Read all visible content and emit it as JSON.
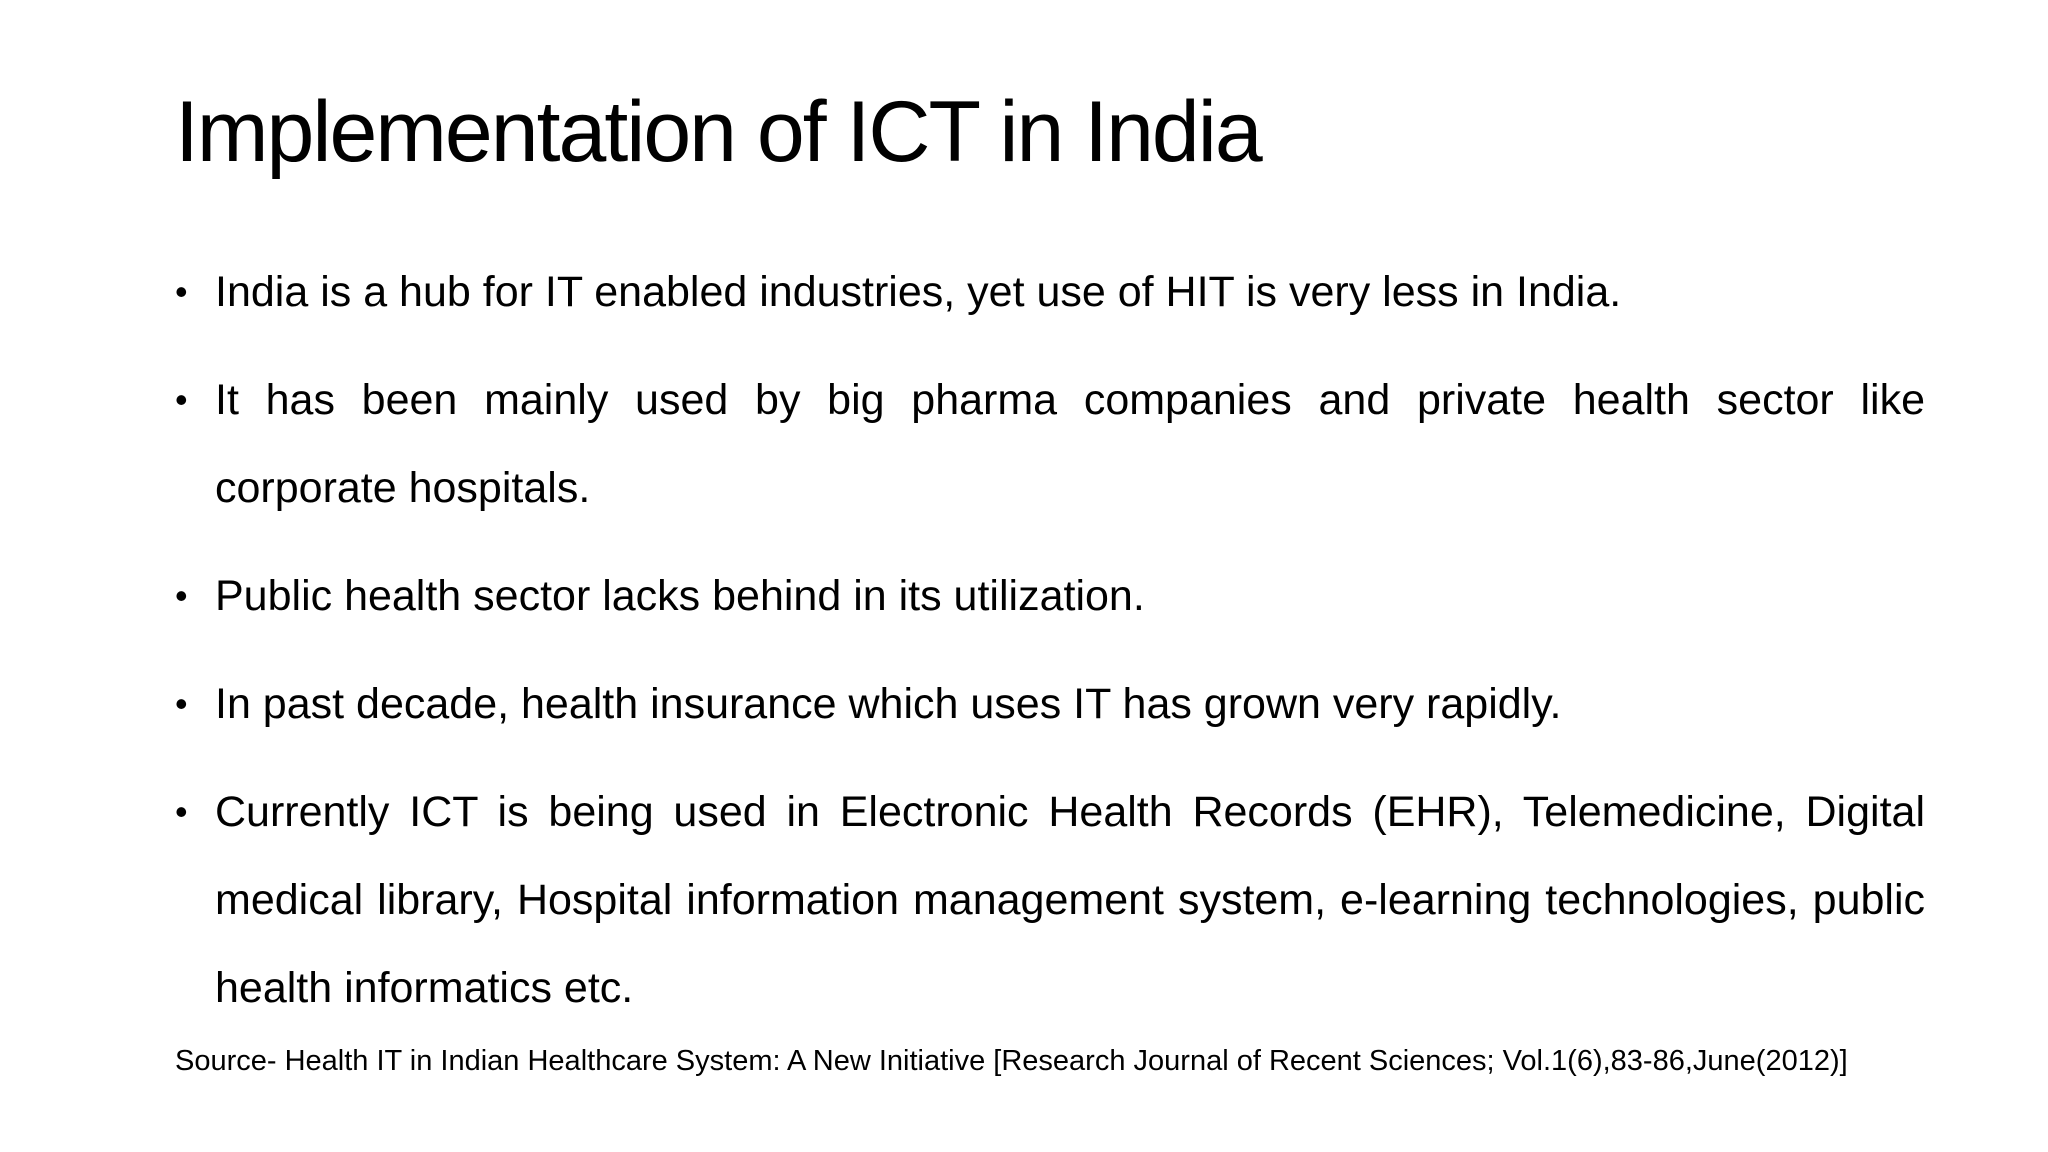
{
  "slide": {
    "title": "Implementation of ICT in India",
    "bullet_marker": "•",
    "bullets": [
      "India is a hub for IT enabled industries,  yet use of HIT is very less in India.",
      "It has been mainly used by big pharma companies and private health sector like corporate hospitals.",
      "Public health sector lacks behind in its utilization.",
      "In past decade, health insurance which uses IT has grown very rapidly.",
      "Currently ICT is being used in Electronic Health Records (EHR), Telemedicine, Digital medical library, Hospital information management system, e-learning technologies, public health informatics etc."
    ],
    "source": "Source- Health IT in Indian Healthcare System: A New Initiative [Research Journal of Recent Sciences; Vol.1(6),83-86,June(2012)]"
  }
}
